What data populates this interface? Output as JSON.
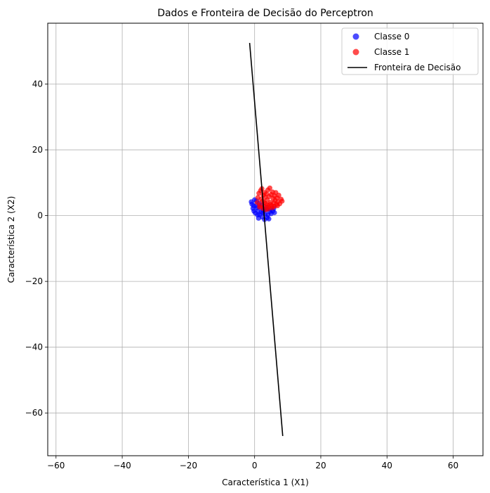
{
  "chart_data": {
    "type": "scatter",
    "title": "Dados e Fronteira de Decisão do Perceptron",
    "xlabel": "Característica 1 (X1)",
    "ylabel": "Característica 2 (X2)",
    "xlim": [
      -62.5,
      69
    ],
    "ylim": [
      -73,
      58.5
    ],
    "xticks": [
      -60,
      -40,
      -20,
      0,
      20,
      40,
      60
    ],
    "yticks": [
      -60,
      -40,
      -20,
      0,
      20,
      40
    ],
    "grid": true,
    "legend_position": "top-right",
    "series": [
      {
        "name": "Classe 0",
        "kind": "scatter",
        "color": "#0000ff",
        "points": [
          [
            -1.0,
            4.2
          ],
          [
            -0.8,
            3.5
          ],
          [
            -0.5,
            2.2
          ],
          [
            -0.2,
            1.4
          ],
          [
            0.2,
            0.8
          ],
          [
            0.5,
            3.0
          ],
          [
            0.8,
            2.4
          ],
          [
            1.0,
            1.5
          ],
          [
            1.2,
            -0.8
          ],
          [
            1.5,
            0.3
          ],
          [
            1.8,
            2.6
          ],
          [
            2.0,
            1.1
          ],
          [
            2.3,
            -0.4
          ],
          [
            2.5,
            0.9
          ],
          [
            2.8,
            2.0
          ],
          [
            3.0,
            -1.2
          ],
          [
            3.2,
            0.5
          ],
          [
            3.5,
            1.8
          ],
          [
            3.8,
            -0.6
          ],
          [
            4.0,
            0.2
          ],
          [
            4.3,
            -1.0
          ],
          [
            4.6,
            1.2
          ],
          [
            5.0,
            0.6
          ],
          [
            5.5,
            1.4
          ],
          [
            6.0,
            0.9
          ],
          [
            0.0,
            4.8
          ],
          [
            0.6,
            4.5
          ],
          [
            1.4,
            3.7
          ],
          [
            2.2,
            3.2
          ],
          [
            -0.3,
            3.0
          ],
          [
            0.9,
            0.2
          ],
          [
            3.6,
            2.5
          ],
          [
            4.8,
            1.9
          ],
          [
            5.8,
            2.2
          ],
          [
            2.6,
            1.6
          ]
        ]
      },
      {
        "name": "Classe 1",
        "kind": "scatter",
        "color": "#ff0000",
        "points": [
          [
            0.8,
            4.0
          ],
          [
            1.0,
            5.5
          ],
          [
            1.3,
            6.8
          ],
          [
            1.6,
            3.2
          ],
          [
            1.8,
            7.6
          ],
          [
            2.0,
            5.0
          ],
          [
            2.2,
            8.2
          ],
          [
            2.4,
            4.4
          ],
          [
            2.6,
            6.2
          ],
          [
            2.8,
            2.8
          ],
          [
            3.0,
            7.0
          ],
          [
            3.2,
            5.6
          ],
          [
            3.4,
            3.6
          ],
          [
            3.6,
            6.6
          ],
          [
            3.8,
            4.8
          ],
          [
            4.0,
            7.8
          ],
          [
            4.2,
            2.6
          ],
          [
            4.4,
            5.8
          ],
          [
            4.6,
            8.4
          ],
          [
            4.8,
            4.0
          ],
          [
            5.0,
            6.4
          ],
          [
            5.2,
            3.0
          ],
          [
            5.4,
            7.2
          ],
          [
            5.6,
            5.2
          ],
          [
            5.8,
            3.8
          ],
          [
            6.0,
            6.0
          ],
          [
            6.2,
            4.6
          ],
          [
            6.4,
            7.0
          ],
          [
            6.6,
            3.4
          ],
          [
            6.8,
            5.4
          ],
          [
            7.0,
            4.2
          ],
          [
            7.3,
            6.2
          ],
          [
            7.6,
            3.6
          ],
          [
            8.0,
            5.0
          ],
          [
            8.3,
            4.4
          ],
          [
            2.5,
            2.2
          ],
          [
            3.3,
            1.8
          ],
          [
            4.1,
            2.0
          ],
          [
            5.3,
            2.4
          ],
          [
            1.5,
            2.6
          ],
          [
            3.9,
            3.2
          ],
          [
            4.7,
            3.4
          ],
          [
            2.9,
            4.0
          ],
          [
            5.9,
            2.8
          ],
          [
            6.9,
            3.0
          ]
        ]
      },
      {
        "name": "Fronteira de Decisão",
        "kind": "line",
        "color": "#000000",
        "points": [
          [
            -1.5,
            52.5
          ],
          [
            8.5,
            -67.0
          ]
        ]
      }
    ]
  }
}
